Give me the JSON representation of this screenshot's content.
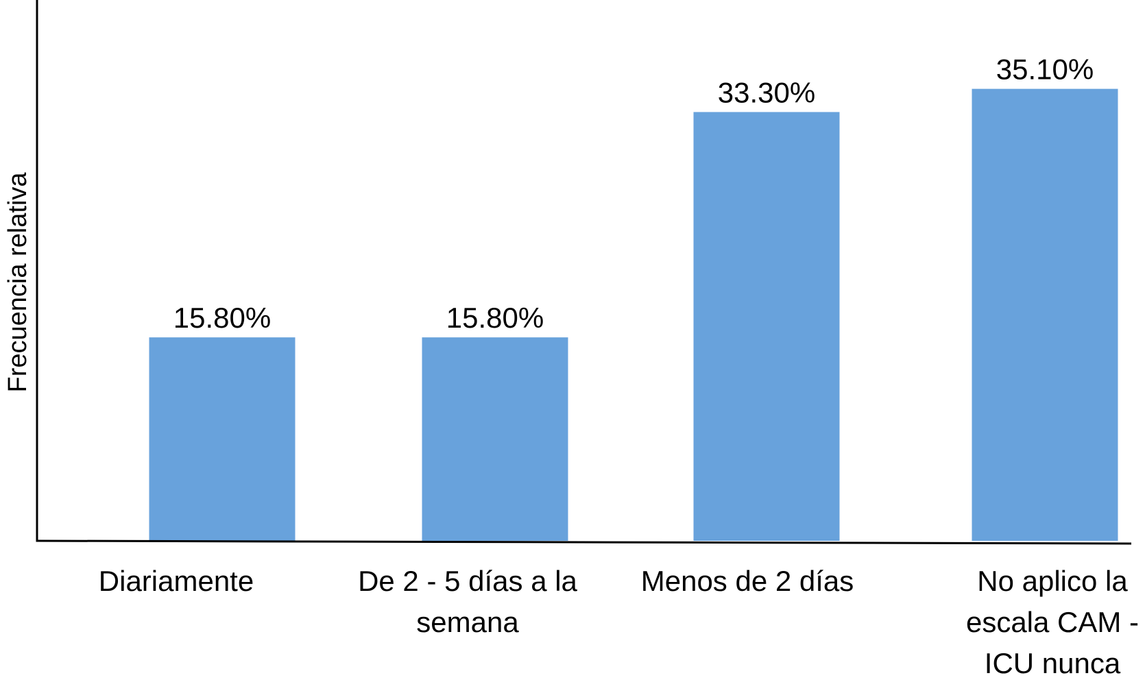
{
  "chart_data": {
    "type": "bar",
    "title": "",
    "xlabel": "",
    "ylabel": "Frecuencia relativa",
    "ylim": [
      0,
      42
    ],
    "grid": false,
    "legend": "none",
    "bar_color": "#68A2DC",
    "axis_color": "#000000",
    "categories": [
      [
        "Diariamente"
      ],
      [
        "De 2 - 5 días a la",
        "semana"
      ],
      [
        "Menos de 2 días"
      ],
      [
        "No aplico la",
        "escala CAM -",
        "ICU nunca"
      ]
    ],
    "values": [
      15.8,
      15.8,
      33.3,
      35.1
    ],
    "value_labels": [
      "15.80%",
      "15.80%",
      "33.30%",
      "35.10%"
    ]
  }
}
